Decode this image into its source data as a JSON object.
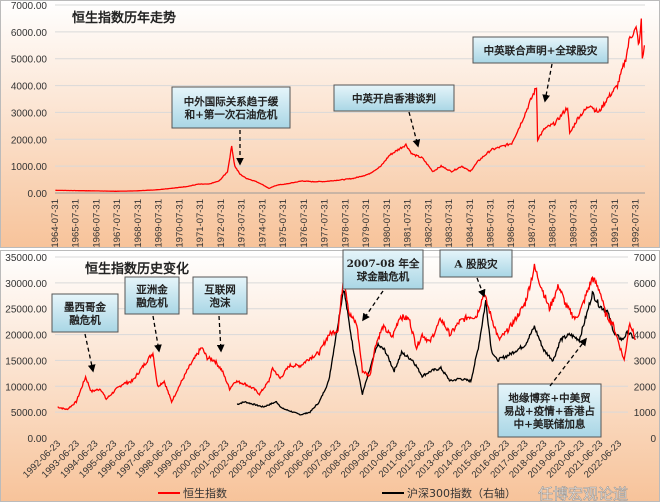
{
  "colors": {
    "hsi": "#ff0000",
    "csi300": "#000000",
    "box_fill": "#bfe3ee",
    "bg_top": "#ffffff",
    "bg_bottom": "#f7c39a"
  },
  "watermark": "任博宏观论道",
  "chart_data": [
    {
      "type": "line",
      "title": "恒生指数历年走势",
      "ylim": [
        0,
        7000
      ],
      "y_ticks": [
        "0.00",
        "1000.00",
        "2000.00",
        "3000.00",
        "4000.00",
        "5000.00",
        "6000.00",
        "7000.00"
      ],
      "x_ticks": [
        "1964-07-31",
        "1965-07-31",
        "1966-07-31",
        "1967-07-31",
        "1968-07-31",
        "1969-07-31",
        "1970-07-31",
        "1971-07-31",
        "1972-07-31",
        "1973-07-31",
        "1974-07-31",
        "1975-07-31",
        "1976-07-31",
        "1977-07-31",
        "1978-07-31",
        "1979-07-31",
        "1980-07-31",
        "1981-07-31",
        "1982-07-31",
        "1983-07-31",
        "1984-07-31",
        "1985-07-31",
        "1986-07-31",
        "1987-07-31",
        "1988-07-31",
        "1989-07-31",
        "1990-07-31",
        "1991-07-31",
        "1992-07-31"
      ],
      "grid": true,
      "series": [
        {
          "x": [
            1964.6,
            1965.5,
            1966.5,
            1967.5,
            1968.5,
            1969.5,
            1970.5,
            1971.0,
            1971.5,
            1972.0,
            1972.5,
            1972.9,
            1973.1,
            1973.25,
            1973.5,
            1973.8,
            1974.2,
            1974.5,
            1974.9,
            1975.3,
            1975.7,
            1976.5,
            1977.0,
            1977.6,
            1978.5,
            1979.0,
            1979.7,
            1980.3,
            1980.7,
            1981.0,
            1981.5,
            1981.8,
            1982.3,
            1982.8,
            1983.2,
            1983.7,
            1984.2,
            1984.6,
            1985.0,
            1985.6,
            1986.0,
            1986.6,
            1987.0,
            1987.6,
            1987.8,
            1987.85,
            1988.2,
            1988.7,
            1989.3,
            1989.4,
            1989.8,
            1990.4,
            1990.6,
            1990.8,
            1991.2,
            1991.7,
            1992.1,
            1992.3,
            1992.6,
            1992.75,
            1992.85,
            1992.9,
            1993.0
          ],
          "values": [
            100,
            90,
            80,
            65,
            80,
            120,
            200,
            250,
            330,
            330,
            450,
            800,
            1750,
            1000,
            700,
            550,
            450,
            350,
            170,
            300,
            330,
            450,
            420,
            430,
            500,
            550,
            700,
            1000,
            1400,
            1550,
            1800,
            1450,
            1300,
            800,
            1000,
            800,
            1000,
            800,
            1200,
            1600,
            1700,
            1850,
            2500,
            3600,
            3950,
            2000,
            2400,
            2600,
            3200,
            2200,
            2800,
            3300,
            3100,
            3000,
            3500,
            4000,
            5000,
            5800,
            6100,
            5500,
            6400,
            5000,
            5500
          ]
        }
      ],
      "annotations": [
        {
          "lines": [
            "中外国际关系趋于缓",
            "和+第一次石油危机"
          ]
        },
        {
          "lines": [
            "中英开启香港谈判"
          ]
        },
        {
          "lines": [
            "中英联合声明+全球股灾"
          ]
        }
      ]
    },
    {
      "type": "line",
      "title": "恒生指数历史变化",
      "ylim": [
        0,
        35000
      ],
      "y2lim": [
        0,
        7000
      ],
      "y_ticks": [
        "0.00",
        "5000.00",
        "10000.00",
        "15000.00",
        "20000.00",
        "25000.00",
        "30000.00",
        "35000.00"
      ],
      "y2_ticks": [
        "0",
        "1000",
        "2000",
        "3000",
        "4000",
        "5000",
        "6000",
        "7000"
      ],
      "x_ticks": [
        "1992-06-23",
        "1993-06-23",
        "1994-06-23",
        "1995-06-23",
        "1996-06-23",
        "1997-06-23",
        "1998-06-23",
        "1999-06-23",
        "2000-06-23",
        "2001-06-23",
        "2002-06-23",
        "2003-06-23",
        "2004-06-23",
        "2005-06-23",
        "2006-06-23",
        "2007-06-23",
        "2008-06-23",
        "2009-06-23",
        "2010-06-23",
        "2011-06-23",
        "2012-06-23",
        "2013-06-23",
        "2014-06-23",
        "2015-06-23",
        "2016-06-23",
        "2017-06-23",
        "2018-06-23",
        "2019-06-23",
        "2020-06-23",
        "2021-06-23",
        "2022-06-23"
      ],
      "grid": true,
      "legend": "bottom",
      "series": [
        {
          "name": "恒生指数",
          "axis": "left",
          "x": [
            1992.5,
            1993.0,
            1993.5,
            1994.0,
            1994.3,
            1994.8,
            1995.1,
            1995.6,
            1996.0,
            1996.5,
            1997.0,
            1997.6,
            1997.85,
            1998.2,
            1998.6,
            1999.0,
            1999.5,
            2000.2,
            2000.5,
            2000.9,
            2001.3,
            2001.7,
            2002.0,
            2002.5,
            2003.0,
            2003.3,
            2003.8,
            2004.0,
            2004.4,
            2004.9,
            2005.5,
            2006.0,
            2006.5,
            2007.0,
            2007.5,
            2007.8,
            2008.1,
            2008.5,
            2008.8,
            2009.2,
            2009.5,
            2009.9,
            2010.4,
            2010.8,
            2011.3,
            2011.7,
            2012.0,
            2012.4,
            2013.0,
            2013.5,
            2014.0,
            2014.5,
            2014.9,
            2015.3,
            2015.6,
            2016.1,
            2016.5,
            2016.9,
            2017.5,
            2018.0,
            2018.3,
            2018.8,
            2019.3,
            2019.7,
            2020.2,
            2020.5,
            2021.1,
            2021.5,
            2021.8,
            2022.2,
            2022.8,
            2023.1,
            2023.4
          ],
          "values": [
            6000,
            5500,
            7000,
            11800,
            9000,
            9500,
            7500,
            9300,
            10500,
            11000,
            13500,
            16500,
            10000,
            11000,
            7000,
            10000,
            13500,
            17500,
            15500,
            15000,
            13000,
            9500,
            11000,
            10500,
            9500,
            8500,
            11000,
            13500,
            11500,
            14000,
            14000,
            15500,
            16500,
            20000,
            21000,
            31500,
            24000,
            22000,
            13000,
            12000,
            18000,
            21500,
            19500,
            23500,
            23000,
            17500,
            20000,
            18500,
            23000,
            20000,
            22500,
            23500,
            23500,
            28000,
            24500,
            19000,
            20500,
            22500,
            26000,
            33000,
            30000,
            25000,
            29500,
            25500,
            23000,
            25000,
            31000,
            28500,
            24000,
            22000,
            15000,
            22500,
            19000
          ]
        },
        {
          "name": "沪深300指数（右轴）",
          "axis": "right",
          "x": [
            2002.1,
            2002.5,
            2003.5,
            2004.2,
            2004.5,
            2005.5,
            2006.0,
            2006.5,
            2007.0,
            2007.4,
            2007.8,
            2008.3,
            2008.8,
            2009.6,
            2010.0,
            2010.5,
            2010.9,
            2011.5,
            2012.0,
            2012.5,
            2013.0,
            2013.5,
            2014.0,
            2014.6,
            2015.0,
            2015.4,
            2015.7,
            2016.0,
            2016.6,
            2017.5,
            2018.0,
            2018.5,
            2019.0,
            2019.4,
            2019.9,
            2020.4,
            2020.8,
            2021.1,
            2021.5,
            2021.9,
            2022.3,
            2022.7,
            2023.0,
            2023.4
          ],
          "values": [
            1300,
            1400,
            1200,
            1400,
            1150,
            900,
            1000,
            1400,
            2200,
            4000,
            5800,
            3500,
            1700,
            3600,
            3400,
            2600,
            3300,
            3000,
            2400,
            2600,
            2700,
            2200,
            2300,
            2200,
            3500,
            5300,
            3400,
            3000,
            3200,
            3600,
            4300,
            3400,
            3000,
            3800,
            4000,
            3800,
            4800,
            5600,
            5100,
            4900,
            4000,
            3800,
            4100,
            3800
          ]
        }
      ],
      "annotations": [
        {
          "lines": [
            "墨西哥金",
            "融危机"
          ]
        },
        {
          "lines": [
            "亚洲金",
            "融危机"
          ]
        },
        {
          "lines": [
            "互联网",
            "泡沫"
          ]
        },
        {
          "lines": [
            "2007-08 年全",
            "球金融危机"
          ]
        },
        {
          "lines": [
            "A 股股灾"
          ]
        },
        {
          "lines": [
            "地缘博弈+中美贸",
            "易战+疫情+香港占",
            "中+美联储加息"
          ]
        }
      ]
    }
  ]
}
